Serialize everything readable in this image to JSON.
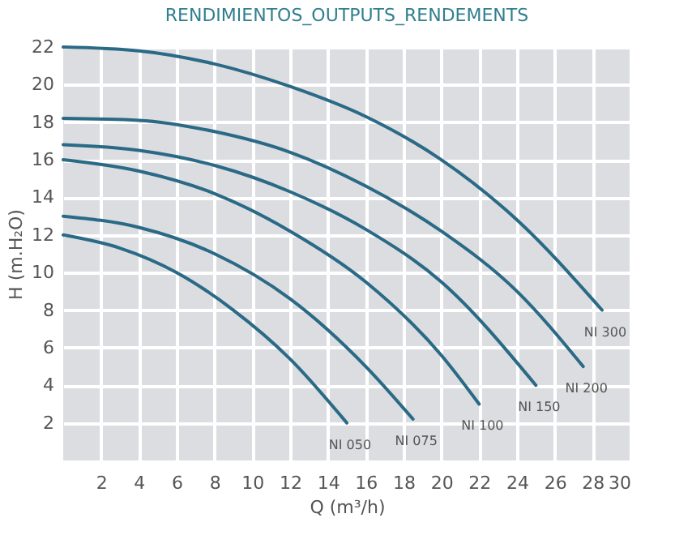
{
  "chart_data": {
    "type": "line",
    "title": "RENDIMIENTOS_OUTPUTS_RENDEMENTS",
    "xlabel": "Q (m³/h)",
    "ylabel": "H (m.H₂O)",
    "series": [
      {
        "name": "NI 050",
        "color": "#2a6a86",
        "x": [
          0,
          3,
          6,
          9,
          12,
          15
        ],
        "values": [
          12,
          11.3,
          10,
          8,
          5.4,
          2
        ]
      },
      {
        "name": "NI 075",
        "color": "#2a6a86",
        "x": [
          0,
          4,
          8,
          12,
          16,
          18.5
        ],
        "values": [
          13,
          12.4,
          11,
          8.6,
          5,
          2.2
        ]
      },
      {
        "name": "NI 100",
        "color": "#2a6a86",
        "x": [
          0,
          4,
          8,
          12,
          16,
          20,
          22
        ],
        "values": [
          16,
          15.4,
          14.2,
          12.2,
          9.5,
          5.6,
          3
        ]
      },
      {
        "name": "NI 150",
        "color": "#2a6a86",
        "x": [
          0,
          4,
          8,
          12,
          16,
          20,
          25
        ],
        "values": [
          16.8,
          16.5,
          15.7,
          14.3,
          12.3,
          9.5,
          4
        ]
      },
      {
        "name": "NI 200",
        "color": "#2a6a86",
        "x": [
          0,
          4,
          8,
          12,
          16,
          20,
          24,
          27.5
        ],
        "values": [
          18.2,
          18.1,
          17.5,
          16.4,
          14.6,
          12.2,
          9,
          5
        ]
      },
      {
        "name": "NI 300",
        "color": "#2a6a86",
        "x": [
          0,
          4,
          8,
          12,
          16,
          20,
          24,
          28.5
        ],
        "values": [
          22,
          21.8,
          21.1,
          19.9,
          18.3,
          16,
          12.8,
          8
        ]
      }
    ],
    "xlim": [
      0,
      30
    ],
    "xticks": [
      2,
      4,
      6,
      8,
      10,
      12,
      14,
      16,
      18,
      20,
      22,
      24,
      26,
      28,
      30
    ],
    "ylim": [
      0,
      22
    ],
    "yticks": [
      2,
      4,
      6,
      8,
      10,
      12,
      14,
      16,
      18,
      20,
      22
    ],
    "grid": true,
    "marker": "none",
    "line_style": "solid"
  }
}
